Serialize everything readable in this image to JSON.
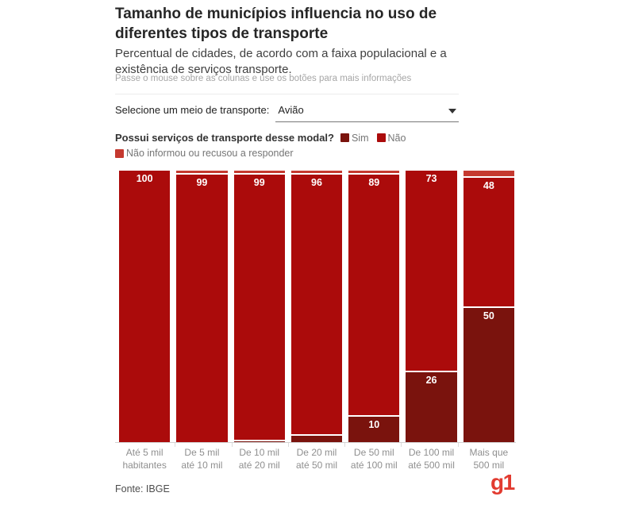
{
  "header": {
    "title": "Tamanho de municípios influencia no uso de diferentes tipos de transporte",
    "subtitle": "Percentual de cidades, de acordo com a faixa populacional e a existência de serviços transporte.",
    "hint": "Passe o mouse sobre as colunas e use os botões para mais informações"
  },
  "transport_select": {
    "label": "Selecione um meio de transporte:",
    "value": "Avião"
  },
  "legend": {
    "question": "Possui serviços de transporte desse modal?",
    "items": [
      {
        "label": "Sim",
        "color": "#7a130d"
      },
      {
        "label": "Não",
        "color": "#ab0b0b"
      },
      {
        "label": "Não informou ou recusou a responder",
        "color": "#c5392f"
      }
    ]
  },
  "chart_data": {
    "type": "bar",
    "stacked": true,
    "unit": "%",
    "ylim": [
      0,
      100
    ],
    "grid": false,
    "legend_position": "top",
    "categories": [
      [
        "Até 5 mil",
        "habitantes"
      ],
      [
        "De 5 mil",
        "até 10 mil"
      ],
      [
        "De 10 mil",
        "até 20 mil"
      ],
      [
        "De 20 mil",
        "até 50 mil"
      ],
      [
        "De 50 mil",
        "até 100 mil"
      ],
      [
        "De 100 mil",
        "até 500 mil"
      ],
      [
        "Mais que",
        "500 mil"
      ]
    ],
    "series": [
      {
        "key": "sim",
        "name": "Sim",
        "color": "#7a130d",
        "values": [
          0,
          0,
          1,
          3,
          10,
          26,
          50
        ],
        "labels": [
          null,
          null,
          null,
          null,
          "10",
          "26",
          "50"
        ]
      },
      {
        "key": "nao",
        "name": "Não",
        "color": "#ab0b0b",
        "values": [
          100,
          99,
          99,
          96,
          89,
          73,
          48
        ],
        "labels": [
          "100",
          "99",
          "99",
          "96",
          "89",
          "73",
          "48"
        ]
      },
      {
        "key": "nao-informou",
        "name": "Não informou ou recusou a responder",
        "color": "#c5392f",
        "values": [
          0,
          1,
          1,
          1,
          1,
          0,
          2
        ],
        "labels": [
          null,
          null,
          null,
          null,
          null,
          null,
          null
        ]
      }
    ]
  },
  "footer": {
    "source": "Fonte: IBGE",
    "logo": "g1",
    "logo_color": "#e23b30"
  }
}
